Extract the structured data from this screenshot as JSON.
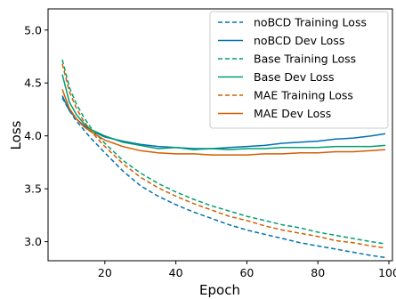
{
  "chart_data": {
    "type": "line",
    "xlabel": "Epoch",
    "ylabel": "Loss",
    "xlim": [
      4,
      101
    ],
    "ylim": [
      2.82,
      5.2
    ],
    "xticks": [
      20,
      40,
      60,
      80,
      100
    ],
    "yticks": [
      3.0,
      3.5,
      4.0,
      4.5,
      5.0
    ],
    "xtick_labels": [
      "20",
      "40",
      "60",
      "80",
      "100"
    ],
    "ytick_labels": [
      "3.0",
      "3.5",
      "4.0",
      "4.5",
      "5.0"
    ],
    "grid": false,
    "legend_position": "top-right",
    "series": [
      {
        "name": "noBCD Training Loss",
        "color": "#0072b2",
        "style": "dashed",
        "x": [
          8,
          10,
          12,
          14,
          16,
          18,
          20,
          25,
          30,
          35,
          40,
          45,
          50,
          55,
          60,
          65,
          70,
          75,
          80,
          85,
          90,
          95,
          99
        ],
        "y": [
          4.36,
          4.24,
          4.14,
          4.06,
          3.98,
          3.91,
          3.84,
          3.67,
          3.53,
          3.43,
          3.35,
          3.28,
          3.22,
          3.16,
          3.11,
          3.07,
          3.03,
          2.99,
          2.96,
          2.93,
          2.9,
          2.87,
          2.85
        ]
      },
      {
        "name": "noBCD Dev Loss",
        "color": "#0072b2",
        "style": "solid",
        "x": [
          8,
          10,
          12,
          14,
          16,
          18,
          20,
          25,
          30,
          35,
          40,
          45,
          50,
          55,
          60,
          65,
          70,
          75,
          80,
          85,
          90,
          95,
          99
        ],
        "y": [
          4.38,
          4.24,
          4.16,
          4.1,
          4.06,
          4.02,
          3.99,
          3.95,
          3.92,
          3.9,
          3.89,
          3.88,
          3.88,
          3.89,
          3.9,
          3.91,
          3.93,
          3.94,
          3.95,
          3.97,
          3.98,
          4.0,
          4.02
        ]
      },
      {
        "name": "Base Training Loss",
        "color": "#009e73",
        "style": "dashed",
        "x": [
          8,
          10,
          12,
          14,
          16,
          18,
          20,
          25,
          30,
          35,
          40,
          45,
          50,
          55,
          60,
          65,
          70,
          75,
          80,
          85,
          90,
          95,
          99
        ],
        "y": [
          4.72,
          4.46,
          4.3,
          4.18,
          4.08,
          4.0,
          3.93,
          3.77,
          3.65,
          3.55,
          3.47,
          3.4,
          3.34,
          3.29,
          3.24,
          3.2,
          3.16,
          3.13,
          3.09,
          3.06,
          3.03,
          3.0,
          2.98
        ]
      },
      {
        "name": "Base Dev Loss",
        "color": "#009e73",
        "style": "solid",
        "x": [
          8,
          10,
          12,
          14,
          16,
          18,
          20,
          25,
          30,
          35,
          40,
          45,
          50,
          55,
          60,
          65,
          70,
          75,
          80,
          85,
          90,
          95,
          99
        ],
        "y": [
          4.58,
          4.32,
          4.2,
          4.12,
          4.06,
          4.03,
          4.0,
          3.94,
          3.91,
          3.88,
          3.89,
          3.87,
          3.88,
          3.87,
          3.88,
          3.88,
          3.89,
          3.89,
          3.89,
          3.9,
          3.9,
          3.9,
          3.91
        ]
      },
      {
        "name": "MAE Training Loss",
        "color": "#d55e00",
        "style": "dashed",
        "x": [
          8,
          10,
          12,
          14,
          16,
          18,
          20,
          25,
          30,
          35,
          40,
          45,
          50,
          55,
          60,
          65,
          70,
          75,
          80,
          85,
          90,
          95,
          99
        ],
        "y": [
          4.68,
          4.42,
          4.26,
          4.14,
          4.05,
          3.97,
          3.9,
          3.74,
          3.61,
          3.51,
          3.43,
          3.36,
          3.3,
          3.24,
          3.2,
          3.15,
          3.11,
          3.08,
          3.05,
          3.01,
          2.99,
          2.96,
          2.94
        ]
      },
      {
        "name": "MAE Dev Loss",
        "color": "#d55e00",
        "style": "solid",
        "x": [
          8,
          10,
          12,
          14,
          16,
          18,
          20,
          25,
          30,
          35,
          40,
          45,
          50,
          55,
          60,
          65,
          70,
          75,
          80,
          85,
          90,
          95,
          99
        ],
        "y": [
          4.44,
          4.26,
          4.16,
          4.09,
          4.04,
          4.0,
          3.96,
          3.9,
          3.86,
          3.84,
          3.83,
          3.83,
          3.82,
          3.82,
          3.82,
          3.83,
          3.83,
          3.84,
          3.84,
          3.85,
          3.85,
          3.86,
          3.87
        ]
      }
    ]
  }
}
